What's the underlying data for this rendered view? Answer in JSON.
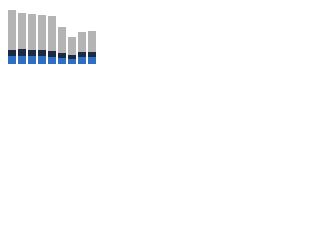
{
  "chart_data": {
    "type": "stacked-bar",
    "categories": [
      null,
      null,
      null,
      null,
      null,
      null,
      null,
      null,
      null
    ],
    "series": [
      {
        "color": "#2e6fc4",
        "values": [
          8,
          8,
          8,
          8,
          7,
          6,
          5,
          7,
          7
        ]
      },
      {
        "color": "#1c2a44",
        "values": [
          6,
          7,
          6,
          6,
          6,
          5,
          4,
          5,
          5
        ]
      },
      {
        "color": "#b4b4b4",
        "values": [
          40,
          36,
          36,
          35,
          35,
          26,
          18,
          20,
          21
        ]
      }
    ]
  }
}
